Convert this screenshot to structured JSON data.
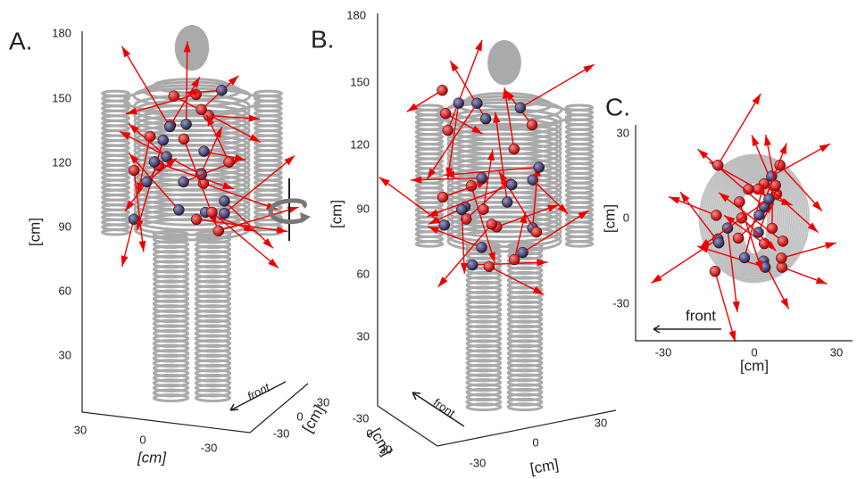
{
  "panels": [
    {
      "label": "A.",
      "z_ticks": [
        180,
        150,
        120,
        90,
        60,
        30
      ],
      "z_label": "[cm]",
      "x_ticks": [
        30,
        0,
        -30
      ],
      "x_label": "[cm]",
      "y_ticks": [
        30,
        0,
        -30
      ],
      "y_label": "[cm]",
      "direction": "front"
    },
    {
      "label": "B.",
      "z_ticks": [
        180,
        150,
        120,
        90,
        60,
        30
      ],
      "z_label": "[cm]",
      "y_ticks": [
        -30,
        0,
        30
      ],
      "y_label": "[cm]",
      "x_ticks": [
        -30,
        0,
        30
      ],
      "x_label": "[cm]",
      "direction": "front"
    },
    {
      "label": "C.",
      "y_ticks": [
        30,
        0,
        -30
      ],
      "y_label": "[cm]",
      "x_ticks": [
        -30,
        0,
        30
      ],
      "x_label": "[cm]",
      "direction": "front"
    }
  ]
}
